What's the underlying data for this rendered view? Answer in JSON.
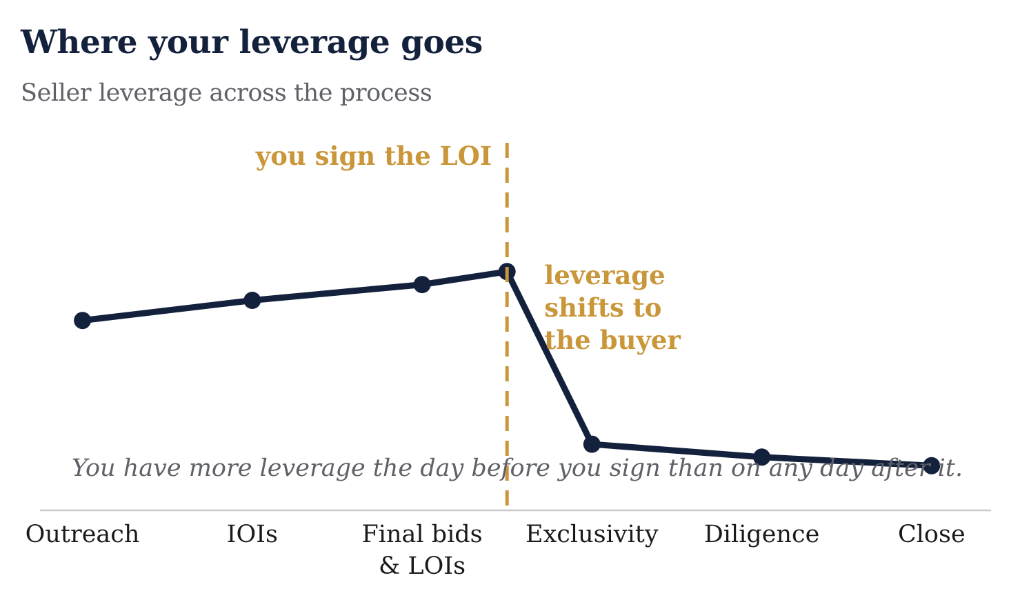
{
  "title": "Where your leverage goes",
  "subtitle": "Seller leverage across the process",
  "colors": {
    "line": "#14213d",
    "accent": "#c9963a",
    "axis": "#c8c9cd",
    "note": "#5f6168",
    "tick": "#1a1a1a"
  },
  "chart_data": {
    "type": "line",
    "categories": [
      "Outreach",
      "IOIs",
      "Final bids & LOIs",
      "Exclusivity",
      "Diligence",
      "Close"
    ],
    "category_label_lines": [
      [
        "Outreach"
      ],
      [
        "IOIs"
      ],
      [
        "Final bids",
        "& LOIs"
      ],
      [
        "Exclusivity"
      ],
      [
        "Diligence"
      ],
      [
        "Close"
      ]
    ],
    "series": [
      {
        "x": [
          0,
          1,
          2,
          2.5,
          3,
          4,
          5
        ],
        "values": [
          6.6,
          7.3,
          7.85,
          8.3,
          2.3,
          1.85,
          1.55
        ]
      }
    ],
    "ylim": [
      0,
      10
    ],
    "xlim": [
      -0.25,
      5.35
    ],
    "y_axis_shown": false,
    "grid": false,
    "annotations": {
      "event_line_label": "you sign the LOI",
      "event_line_x": 2.5,
      "shift_label_lines": [
        "leverage",
        "shifts to",
        "the buyer"
      ],
      "note": "You have more leverage the day before you sign than on any day after it."
    }
  }
}
